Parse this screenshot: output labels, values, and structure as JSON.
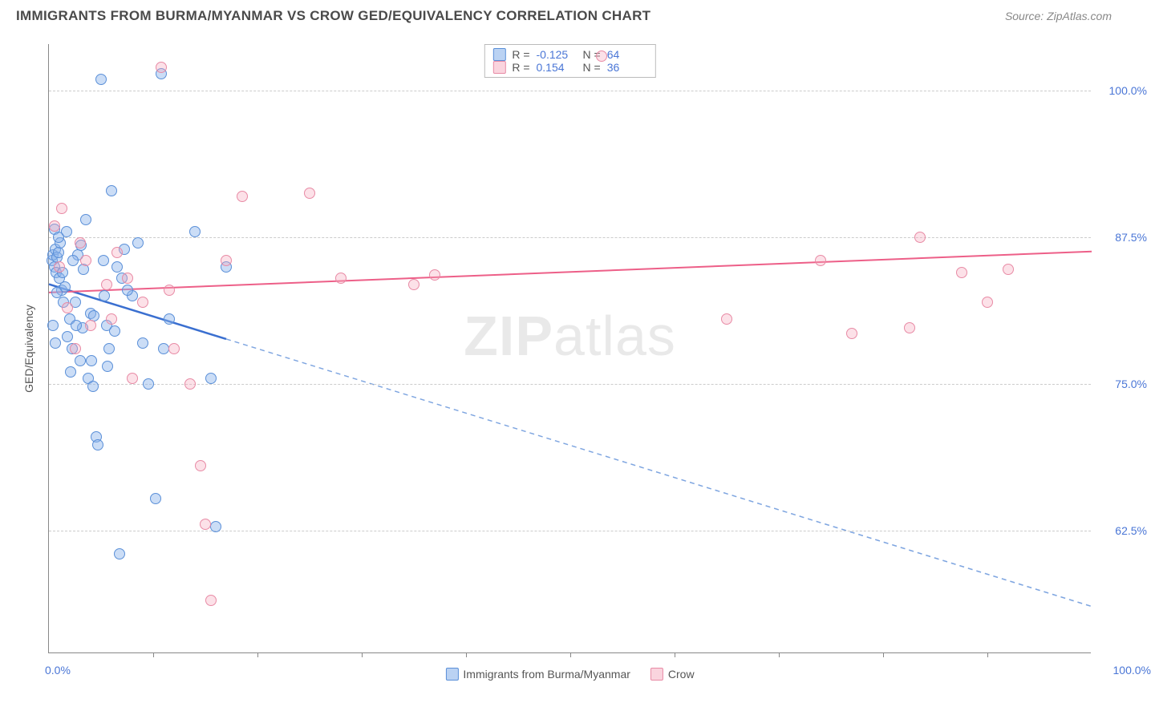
{
  "title": "IMMIGRANTS FROM BURMA/MYANMAR VS CROW GED/EQUIVALENCY CORRELATION CHART",
  "source_label": "Source: ",
  "source_name": "ZipAtlas.com",
  "watermark_a": "ZIP",
  "watermark_b": "atlas",
  "y_axis_label": "GED/Equivalency",
  "x_min_label": "0.0%",
  "x_max_label": "100.0%",
  "legend_top": {
    "r_label": "R =",
    "n_label": "N =",
    "rows": [
      {
        "color": "blue",
        "r": "-0.125",
        "n": "64"
      },
      {
        "color": "pink",
        "r": "0.154",
        "n": "36"
      }
    ]
  },
  "legend_bottom": [
    {
      "color": "blue",
      "label": "Immigrants from Burma/Myanmar"
    },
    {
      "color": "pink",
      "label": "Crow"
    }
  ],
  "chart": {
    "type": "scatter",
    "background_color": "#ffffff",
    "grid_color": "#cccccc",
    "axis_color": "#888888",
    "value_color": "#4a76d6",
    "xlim": [
      0,
      100
    ],
    "ylim": [
      52,
      104
    ],
    "y_ticks": [
      {
        "value": 62.5,
        "label": "62.5%"
      },
      {
        "value": 75.0,
        "label": "75.0%"
      },
      {
        "value": 87.5,
        "label": "87.5%"
      },
      {
        "value": 100.0,
        "label": "100.0%"
      }
    ],
    "x_tick_step": 10,
    "series": [
      {
        "name": "Immigrants from Burma/Myanmar",
        "color_fill": "rgba(140,180,235,0.45)",
        "color_stroke": "#5a8fd8",
        "marker_size": 14,
        "trend": {
          "x1": 0,
          "y1": 83.5,
          "x2": 100,
          "y2": 56.0,
          "solid_until_x": 17,
          "solid_color": "#3a6fd0",
          "dash_color": "#7ea5e0",
          "width_solid": 2.5,
          "width_dash": 1.5
        },
        "points": [
          [
            0.3,
            85.5
          ],
          [
            0.4,
            86.0
          ],
          [
            0.5,
            85.0
          ],
          [
            0.6,
            86.5
          ],
          [
            0.7,
            84.5
          ],
          [
            0.8,
            85.8
          ],
          [
            0.9,
            86.2
          ],
          [
            1.0,
            84.0
          ],
          [
            1.1,
            87.0
          ],
          [
            1.2,
            83.0
          ],
          [
            1.5,
            83.3
          ],
          [
            1.8,
            79.0
          ],
          [
            2.0,
            80.5
          ],
          [
            2.2,
            78.0
          ],
          [
            2.5,
            82.0
          ],
          [
            2.8,
            86.0
          ],
          [
            3.0,
            77.0
          ],
          [
            3.2,
            79.8
          ],
          [
            3.5,
            89.0
          ],
          [
            3.8,
            75.5
          ],
          [
            4.0,
            81.0
          ],
          [
            4.2,
            74.8
          ],
          [
            4.5,
            70.5
          ],
          [
            4.7,
            69.8
          ],
          [
            5.0,
            101.0
          ],
          [
            5.2,
            85.5
          ],
          [
            5.5,
            80.0
          ],
          [
            5.8,
            78.0
          ],
          [
            6.0,
            91.5
          ],
          [
            6.5,
            85.0
          ],
          [
            6.8,
            60.5
          ],
          [
            7.0,
            84.0
          ],
          [
            7.2,
            86.5
          ],
          [
            8.0,
            82.5
          ],
          [
            8.5,
            87.0
          ],
          [
            9.0,
            78.5
          ],
          [
            9.5,
            75.0
          ],
          [
            10.2,
            65.2
          ],
          [
            10.8,
            101.5
          ],
          [
            11.0,
            78.0
          ],
          [
            11.5,
            80.5
          ],
          [
            14.0,
            88.0
          ],
          [
            15.5,
            75.5
          ],
          [
            16.0,
            62.8
          ],
          [
            17.0,
            85.0
          ],
          [
            0.5,
            88.2
          ],
          [
            0.8,
            82.8
          ],
          [
            1.3,
            84.5
          ],
          [
            1.7,
            88.0
          ],
          [
            2.1,
            76.0
          ],
          [
            2.6,
            80.0
          ],
          [
            3.3,
            84.8
          ],
          [
            4.1,
            77.0
          ],
          [
            5.3,
            82.5
          ],
          [
            6.3,
            79.5
          ],
          [
            0.4,
            80.0
          ],
          [
            0.6,
            78.5
          ],
          [
            0.9,
            87.5
          ],
          [
            1.4,
            82.0
          ],
          [
            2.3,
            85.5
          ],
          [
            3.1,
            86.8
          ],
          [
            4.3,
            80.8
          ],
          [
            5.6,
            76.5
          ],
          [
            7.5,
            83.0
          ]
        ]
      },
      {
        "name": "Crow",
        "color_fill": "rgba(245,170,190,0.35)",
        "color_stroke": "#e88aa5",
        "marker_size": 14,
        "trend": {
          "x1": 0,
          "y1": 82.8,
          "x2": 100,
          "y2": 86.3,
          "solid_until_x": 100,
          "solid_color": "#ed5f88",
          "dash_color": "#ed5f88",
          "width_solid": 2,
          "width_dash": 2
        },
        "points": [
          [
            0.5,
            88.5
          ],
          [
            1.0,
            85.0
          ],
          [
            1.8,
            81.5
          ],
          [
            2.5,
            78.0
          ],
          [
            3.5,
            85.5
          ],
          [
            4.0,
            80.0
          ],
          [
            5.5,
            83.5
          ],
          [
            6.5,
            86.2
          ],
          [
            8.0,
            75.5
          ],
          [
            9.0,
            82.0
          ],
          [
            10.8,
            102.0
          ],
          [
            12.0,
            78.0
          ],
          [
            14.5,
            68.0
          ],
          [
            15.0,
            63.0
          ],
          [
            15.5,
            56.5
          ],
          [
            17.0,
            85.5
          ],
          [
            18.5,
            91.0
          ],
          [
            25.0,
            91.3
          ],
          [
            28.0,
            84.0
          ],
          [
            35.0,
            83.5
          ],
          [
            37.0,
            84.3
          ],
          [
            53.0,
            103.0
          ],
          [
            65.0,
            80.5
          ],
          [
            74.0,
            85.5
          ],
          [
            77.0,
            79.3
          ],
          [
            82.5,
            79.8
          ],
          [
            83.5,
            87.5
          ],
          [
            87.5,
            84.5
          ],
          [
            90.0,
            82.0
          ],
          [
            92.0,
            84.8
          ],
          [
            1.2,
            90.0
          ],
          [
            3.0,
            87.0
          ],
          [
            6.0,
            80.5
          ],
          [
            7.5,
            84.0
          ],
          [
            11.5,
            83.0
          ],
          [
            13.5,
            75.0
          ]
        ]
      }
    ]
  }
}
